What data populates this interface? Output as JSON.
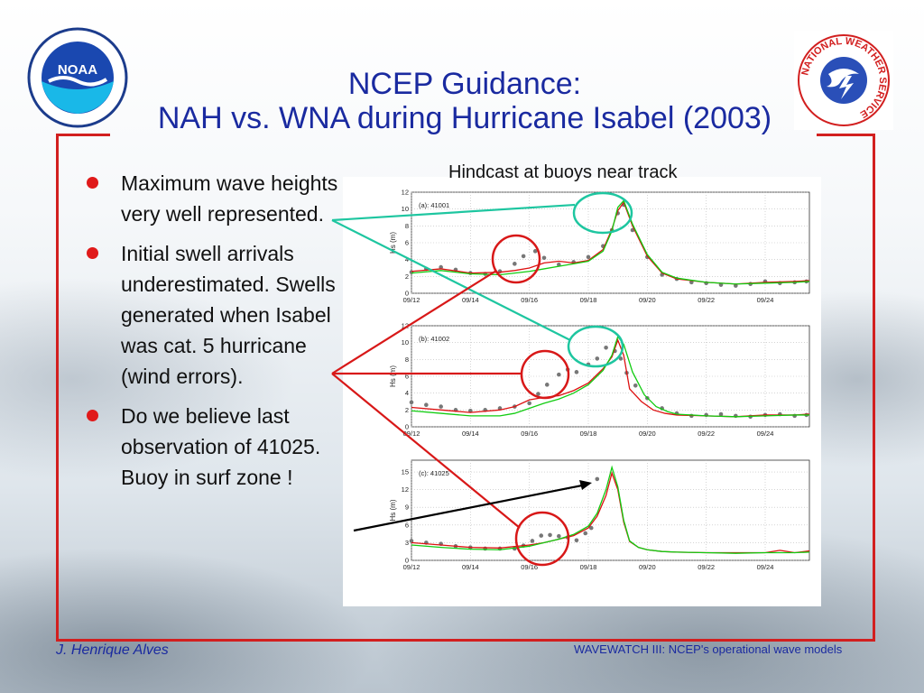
{
  "title": {
    "line1": "NCEP Guidance:",
    "line2": "NAH vs. WNA during Hurricane Isabel (2003)"
  },
  "bullets": [
    "Maximum wave heights very well represented.",
    "Initial swell arrivals underestimated. Swells generated when Isabel was cat. 5 hurricane (wind errors).",
    "Do we believe last observation of 41025. Buoy in surf zone !"
  ],
  "hindcast_label": "Hindcast at buoys near track",
  "footer": {
    "author": "J. Henrique Alves",
    "caption": "WAVEWATCH III: NCEP's operational wave models"
  },
  "logos": {
    "left": "NOAA",
    "right_ring": "NATIONAL WEATHER SERVICE"
  },
  "colors": {
    "title": "#1a2aa0",
    "frame": "#d21f1f",
    "bullet": "#e01a1a",
    "obs": "#777777",
    "nah_red": "#dd1111",
    "wna_green": "#11cc11",
    "circle_red": "#d81818",
    "circle_teal": "#1ec6a0",
    "arrow": "#000000"
  },
  "chart_data": [
    {
      "type": "line",
      "panel_label": "(a): 41001",
      "ylabel": "Hs (m)",
      "xticks": [
        "09/12",
        "09/14",
        "09/16",
        "09/18",
        "09/20",
        "09/22",
        "09/24"
      ],
      "xlim": [
        0,
        13.5
      ],
      "ylim": [
        0,
        12
      ],
      "yticks": [
        0,
        2,
        4,
        6,
        8,
        10,
        12
      ],
      "series": [
        {
          "style": "observations",
          "color": "#777777",
          "x": [
            0,
            0.5,
            1,
            1.5,
            2,
            2.5,
            3,
            3.5,
            3.8,
            4.2,
            4.5,
            5,
            5.5,
            6,
            6.5,
            6.8,
            7.0,
            7.2,
            7.5,
            8,
            8.5,
            9,
            9.5,
            10,
            10.5,
            11,
            11.5,
            12,
            12.5,
            13,
            13.4
          ],
          "y": [
            2.5,
            2.9,
            3.1,
            2.8,
            2.4,
            2.3,
            2.6,
            3.5,
            4.4,
            5.0,
            4.2,
            3.4,
            3.7,
            4.3,
            5.6,
            7.5,
            9.5,
            10.5,
            7.5,
            4.3,
            2.2,
            1.7,
            1.3,
            1.2,
            1.0,
            0.9,
            1.1,
            1.4,
            1.2,
            1.3,
            1.4
          ]
        },
        {
          "style": "line",
          "color": "#dd1111",
          "x": [
            0,
            1,
            2,
            3,
            3.5,
            4,
            4.5,
            5,
            5.5,
            6,
            6.5,
            6.8,
            7.0,
            7.2,
            7.5,
            8,
            8.5,
            9,
            10,
            11,
            12,
            13,
            13.5
          ],
          "y": [
            2.6,
            2.9,
            2.4,
            2.5,
            2.7,
            3.0,
            3.6,
            3.8,
            3.6,
            3.9,
            5.2,
            7.6,
            9.8,
            10.8,
            8.0,
            4.4,
            2.4,
            1.7,
            1.3,
            1.1,
            1.3,
            1.4,
            1.5
          ]
        },
        {
          "style": "line",
          "color": "#11cc11",
          "x": [
            0,
            1,
            2,
            3,
            3.5,
            4,
            4.5,
            5,
            5.5,
            6,
            6.5,
            6.8,
            7.0,
            7.2,
            7.5,
            8,
            8.5,
            9,
            10,
            11,
            12,
            13,
            13.5
          ],
          "y": [
            2.4,
            2.7,
            2.3,
            2.2,
            2.4,
            2.6,
            2.9,
            3.2,
            3.5,
            3.8,
            5.0,
            7.4,
            10.2,
            11.0,
            8.2,
            4.6,
            2.5,
            1.8,
            1.3,
            1.1,
            1.2,
            1.3,
            1.4
          ]
        }
      ]
    },
    {
      "type": "line",
      "panel_label": "(b): 41002",
      "ylabel": "Hs (m)",
      "xticks": [
        "09/12",
        "09/14",
        "09/16",
        "09/18",
        "09/20",
        "09/22",
        "09/24"
      ],
      "xlim": [
        0,
        13.5
      ],
      "ylim": [
        0,
        12
      ],
      "yticks": [
        0,
        2,
        4,
        6,
        8,
        10,
        12
      ],
      "series": [
        {
          "style": "observations",
          "color": "#777777",
          "x": [
            0,
            0.5,
            1,
            1.5,
            2,
            2.5,
            3,
            3.5,
            4,
            4.3,
            4.6,
            5,
            5.3,
            5.6,
            6,
            6.3,
            6.6,
            6.9,
            7.1,
            7.3,
            7.6,
            8,
            8.5,
            9,
            9.5,
            10,
            10.5,
            11,
            11.5,
            12,
            12.5,
            13,
            13.4
          ],
          "y": [
            2.9,
            2.6,
            2.4,
            2.0,
            1.9,
            2.0,
            2.2,
            2.4,
            2.8,
            3.9,
            5.0,
            6.2,
            6.8,
            6.5,
            7.4,
            8.1,
            9.4,
            9.0,
            8.1,
            6.4,
            4.9,
            3.4,
            2.2,
            1.6,
            1.3,
            1.4,
            1.5,
            1.3,
            1.2,
            1.4,
            1.5,
            1.3,
            1.4
          ]
        },
        {
          "style": "line",
          "color": "#dd1111",
          "x": [
            0,
            1,
            2,
            3,
            3.5,
            4,
            4.5,
            5,
            5.5,
            6,
            6.5,
            6.8,
            7.0,
            7.2,
            7.4,
            7.8,
            8.2,
            8.6,
            9,
            10,
            11,
            12,
            13,
            13.5
          ],
          "y": [
            2.3,
            2.0,
            1.7,
            2.0,
            2.4,
            3.2,
            3.5,
            3.7,
            4.3,
            5.2,
            6.9,
            8.3,
            10.3,
            8.5,
            4.5,
            3.0,
            2.0,
            1.6,
            1.4,
            1.3,
            1.2,
            1.4,
            1.4,
            1.5
          ]
        },
        {
          "style": "line",
          "color": "#11cc11",
          "x": [
            0,
            1,
            2,
            3,
            3.5,
            4,
            4.5,
            5,
            5.5,
            6,
            6.5,
            6.8,
            7.0,
            7.2,
            7.5,
            7.9,
            8.3,
            8.7,
            9,
            10,
            11,
            12,
            13,
            13.5
          ],
          "y": [
            1.9,
            1.6,
            1.3,
            1.3,
            1.6,
            2.2,
            2.8,
            3.3,
            4.0,
            5.0,
            6.7,
            8.5,
            10.7,
            9.8,
            6.5,
            3.8,
            2.4,
            1.8,
            1.5,
            1.3,
            1.2,
            1.3,
            1.4,
            1.4
          ]
        }
      ]
    },
    {
      "type": "line",
      "panel_label": "(c): 41025",
      "ylabel": "Hs (m)",
      "xticks": [
        "09/12",
        "09/14",
        "09/16",
        "09/18",
        "09/20",
        "09/22",
        "09/24"
      ],
      "xlim": [
        0,
        13.5
      ],
      "ylim": [
        0,
        17
      ],
      "yticks": [
        0,
        3,
        6,
        9,
        12,
        15
      ],
      "series": [
        {
          "style": "observations",
          "color": "#777777",
          "x": [
            0,
            0.5,
            1,
            1.5,
            2,
            2.5,
            3,
            3.5,
            3.8,
            4.1,
            4.4,
            4.7,
            5,
            5.3,
            5.6,
            5.9,
            6.1,
            6.3
          ],
          "y": [
            3.3,
            3.0,
            2.8,
            2.4,
            2.2,
            2.0,
            2.0,
            2.0,
            2.5,
            3.3,
            4.2,
            4.3,
            4.1,
            3.9,
            3.4,
            4.6,
            5.5,
            13.8
          ]
        },
        {
          "style": "line",
          "color": "#dd1111",
          "x": [
            0,
            1,
            2,
            3,
            4,
            4.5,
            5,
            5.5,
            6,
            6.3,
            6.6,
            6.8,
            7.0,
            7.2,
            7.4,
            7.7,
            8,
            8.5,
            9,
            10,
            11,
            12,
            12.5,
            13,
            13.5
          ],
          "y": [
            3.0,
            2.6,
            2.2,
            2.1,
            2.6,
            3.0,
            3.6,
            4.2,
            5.5,
            7.5,
            11.0,
            14.8,
            12.0,
            6.5,
            3.2,
            2.2,
            1.8,
            1.5,
            1.4,
            1.3,
            1.3,
            1.3,
            1.7,
            1.3,
            1.6
          ]
        },
        {
          "style": "line",
          "color": "#11cc11",
          "x": [
            0,
            1,
            2,
            3,
            4,
            4.5,
            5,
            5.5,
            6,
            6.3,
            6.6,
            6.8,
            7.0,
            7.2,
            7.4,
            7.7,
            8,
            8.5,
            9,
            10,
            11,
            12,
            13,
            13.5
          ],
          "y": [
            2.6,
            2.2,
            1.9,
            1.8,
            2.4,
            3.0,
            3.6,
            4.4,
            5.8,
            8.0,
            12.0,
            15.8,
            12.5,
            6.8,
            3.3,
            2.2,
            1.8,
            1.5,
            1.4,
            1.3,
            1.2,
            1.3,
            1.3,
            1.4
          ]
        }
      ]
    }
  ]
}
